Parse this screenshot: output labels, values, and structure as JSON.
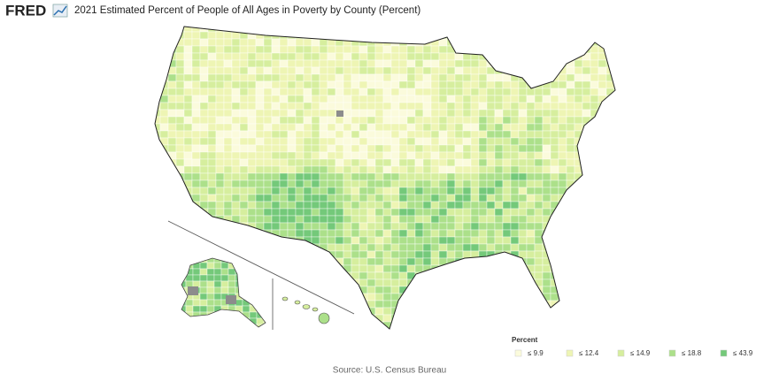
{
  "header": {
    "logo": "FRED",
    "title": "2021 Estimated Percent of People of All Ages in Poverty by County (Percent)"
  },
  "legend": {
    "title": "Percent",
    "items": [
      {
        "label": "≤ 9.9",
        "color": "#fbfbdc"
      },
      {
        "label": "≤ 12.4",
        "color": "#eef5b4"
      },
      {
        "label": "≤ 14.9",
        "color": "#d6ee9e"
      },
      {
        "label": "≤ 18.8",
        "color": "#ace08a"
      },
      {
        "label": "≤ 43.9",
        "color": "#74c97a"
      }
    ]
  },
  "source": "Source: U.S. Census Bureau"
}
